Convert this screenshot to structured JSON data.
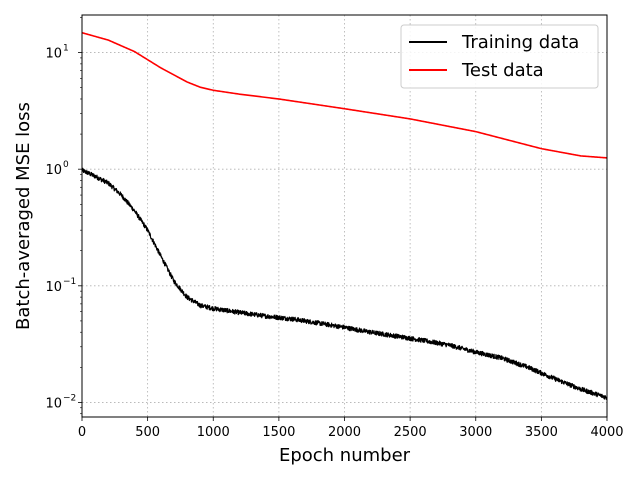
{
  "chart_data": {
    "type": "line",
    "xlabel": "Epoch number",
    "ylabel": "Batch-averaged MSE loss",
    "xlim": [
      0,
      4000
    ],
    "ylim": [
      0.0075,
      21
    ],
    "y_scale": "log",
    "grid": true,
    "grid_style": "dotted",
    "legend_position": "upper right",
    "x_ticks": [
      0,
      500,
      1000,
      1500,
      2000,
      2500,
      3000,
      3500,
      4000
    ],
    "x_tick_labels": [
      "0",
      "500",
      "1000",
      "1500",
      "2000",
      "2500",
      "3000",
      "3500",
      "4000"
    ],
    "y_ticks": [
      0.01,
      0.1,
      1,
      10
    ],
    "y_tick_labels": [
      "10",
      "10",
      "10",
      "10"
    ],
    "y_tick_exponents": [
      "−2",
      "−1",
      "0",
      "1"
    ],
    "series": [
      {
        "name": "Training data",
        "color": "#000000",
        "noisy": true,
        "x": [
          0,
          100,
          200,
          300,
          400,
          500,
          600,
          700,
          800,
          900,
          1000,
          1200,
          1400,
          1600,
          1800,
          2000,
          2200,
          2400,
          2600,
          2800,
          3000,
          3200,
          3400,
          3600,
          3800,
          4000
        ],
        "y": [
          0.98,
          0.87,
          0.76,
          0.6,
          0.44,
          0.3,
          0.18,
          0.11,
          0.08,
          0.068,
          0.064,
          0.059,
          0.055,
          0.052,
          0.048,
          0.044,
          0.04,
          0.037,
          0.034,
          0.031,
          0.027,
          0.024,
          0.02,
          0.016,
          0.013,
          0.011
        ]
      },
      {
        "name": "Test data",
        "color": "#ff0000",
        "noisy": false,
        "x": [
          0,
          200,
          400,
          600,
          800,
          900,
          1000,
          1200,
          1500,
          2000,
          2500,
          3000,
          3500,
          3800,
          4000
        ],
        "y": [
          14.8,
          12.8,
          10.2,
          7.4,
          5.6,
          5.05,
          4.75,
          4.4,
          4.0,
          3.3,
          2.7,
          2.1,
          1.5,
          1.3,
          1.25
        ]
      }
    ]
  }
}
